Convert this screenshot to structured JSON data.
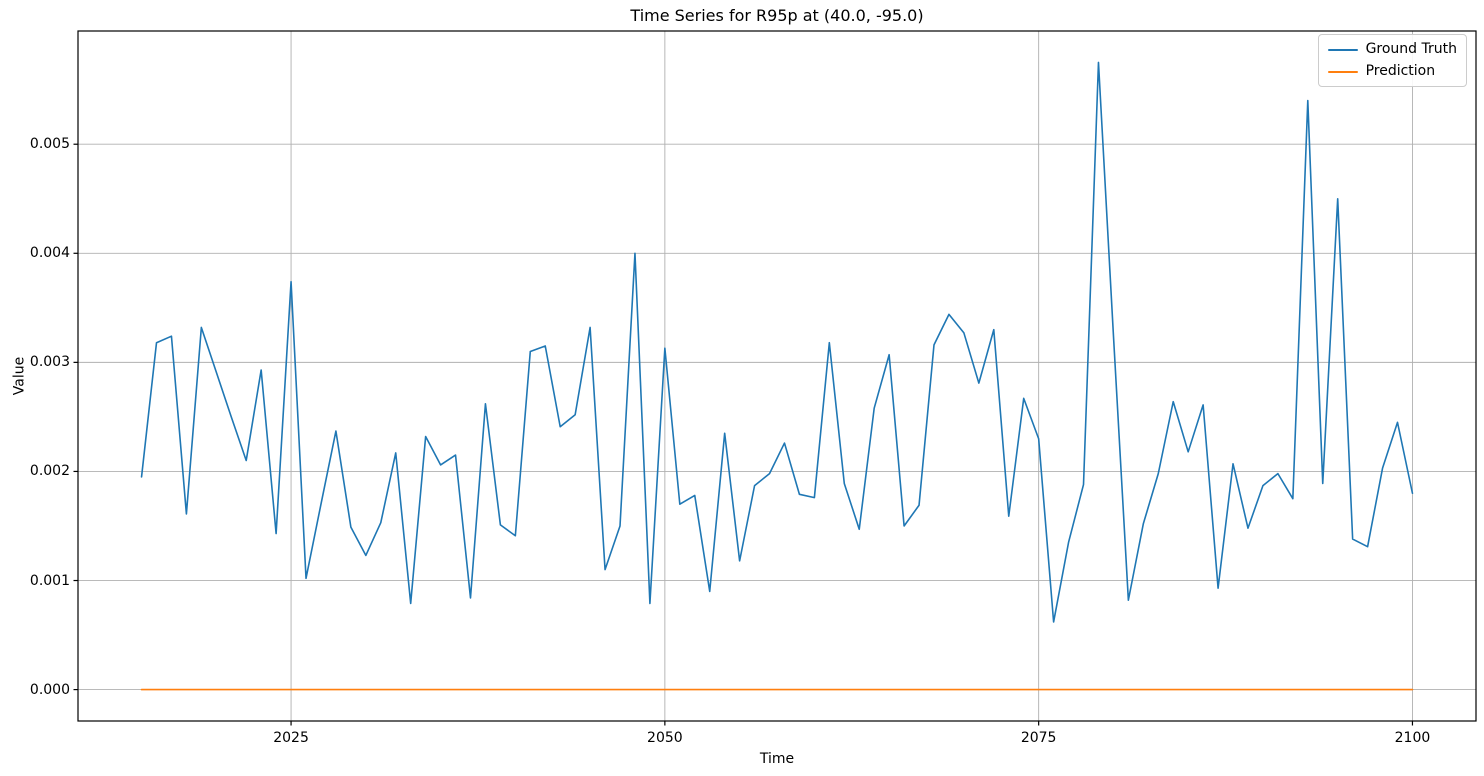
{
  "chart_data": {
    "type": "line",
    "title": "Time Series for R95p at (40.0, -95.0)",
    "xlabel": "Time",
    "ylabel": "Value",
    "grid": true,
    "legend_position": "upper right",
    "background_color": "#ffffff",
    "grid_color": "#b0b0b0",
    "spine_color": "#000000",
    "xlim": [
      2010.75,
      2104.25
    ],
    "ylim": [
      -0.000288,
      0.006038
    ],
    "x_ticks": [
      "2025",
      "2050",
      "2075",
      "2100"
    ],
    "y_ticks": [
      "0.000",
      "0.001",
      "0.002",
      "0.003",
      "0.004",
      "0.005"
    ],
    "x": [
      2015,
      2016,
      2017,
      2018,
      2019,
      2020,
      2021,
      2022,
      2023,
      2024,
      2025,
      2026,
      2027,
      2028,
      2029,
      2030,
      2031,
      2032,
      2033,
      2034,
      2035,
      2036,
      2037,
      2038,
      2039,
      2040,
      2041,
      2042,
      2043,
      2044,
      2045,
      2046,
      2047,
      2048,
      2049,
      2050,
      2051,
      2052,
      2053,
      2054,
      2055,
      2056,
      2057,
      2058,
      2059,
      2060,
      2061,
      2062,
      2063,
      2064,
      2065,
      2066,
      2067,
      2068,
      2069,
      2070,
      2071,
      2072,
      2073,
      2074,
      2075,
      2076,
      2077,
      2078,
      2079,
      2080,
      2081,
      2082,
      2083,
      2084,
      2085,
      2086,
      2087,
      2088,
      2089,
      2090,
      2091,
      2092,
      2093,
      2094,
      2095,
      2096,
      2097,
      2098,
      2099,
      2100
    ],
    "series": [
      {
        "name": "Ground Truth",
        "color": "#1f77b4",
        "values": [
          0.00195,
          0.00318,
          0.00324,
          0.00161,
          0.00332,
          0.00291,
          0.0025,
          0.0021,
          0.00293,
          0.00143,
          0.00374,
          0.00102,
          0.0017,
          0.00237,
          0.00149,
          0.00123,
          0.00153,
          0.00217,
          0.00079,
          0.00232,
          0.00206,
          0.00215,
          0.00084,
          0.00262,
          0.00151,
          0.00141,
          0.0031,
          0.00315,
          0.00241,
          0.00252,
          0.00332,
          0.0011,
          0.0015,
          0.004,
          0.00079,
          0.00313,
          0.0017,
          0.00178,
          0.0009,
          0.00235,
          0.00118,
          0.00187,
          0.00198,
          0.00226,
          0.00179,
          0.00176,
          0.00318,
          0.00189,
          0.00147,
          0.00258,
          0.00307,
          0.0015,
          0.00169,
          0.00316,
          0.00344,
          0.00327,
          0.00281,
          0.0033,
          0.00159,
          0.00267,
          0.0023,
          0.00062,
          0.00135,
          0.00188,
          0.00575,
          0.00325,
          0.00082,
          0.00152,
          0.00198,
          0.00264,
          0.00218,
          0.00261,
          0.00093,
          0.00207,
          0.00148,
          0.00187,
          0.00198,
          0.00175,
          0.0054,
          0.00189,
          0.0045,
          0.00138,
          0.00131,
          0.00203,
          0.00245,
          0.0018
        ]
      },
      {
        "name": "Prediction",
        "color": "#ff7f0e",
        "values": [
          0.0,
          0.0,
          0.0,
          0.0,
          0.0,
          0.0,
          0.0,
          0.0,
          0.0,
          0.0,
          0.0,
          0.0,
          0.0,
          0.0,
          0.0,
          0.0,
          0.0,
          0.0,
          0.0,
          0.0,
          0.0,
          0.0,
          0.0,
          0.0,
          0.0,
          0.0,
          0.0,
          0.0,
          0.0,
          0.0,
          0.0,
          0.0,
          0.0,
          0.0,
          0.0,
          0.0,
          0.0,
          0.0,
          0.0,
          0.0,
          0.0,
          0.0,
          0.0,
          0.0,
          0.0,
          0.0,
          0.0,
          0.0,
          0.0,
          0.0,
          0.0,
          0.0,
          0.0,
          0.0,
          0.0,
          0.0,
          0.0,
          0.0,
          0.0,
          0.0,
          0.0,
          0.0,
          0.0,
          0.0,
          0.0,
          0.0,
          0.0,
          0.0,
          0.0,
          0.0,
          0.0,
          0.0,
          0.0,
          0.0,
          0.0,
          0.0,
          0.0,
          0.0,
          0.0,
          0.0,
          0.0,
          0.0,
          0.0,
          0.0,
          0.0,
          0.0
        ]
      }
    ]
  }
}
